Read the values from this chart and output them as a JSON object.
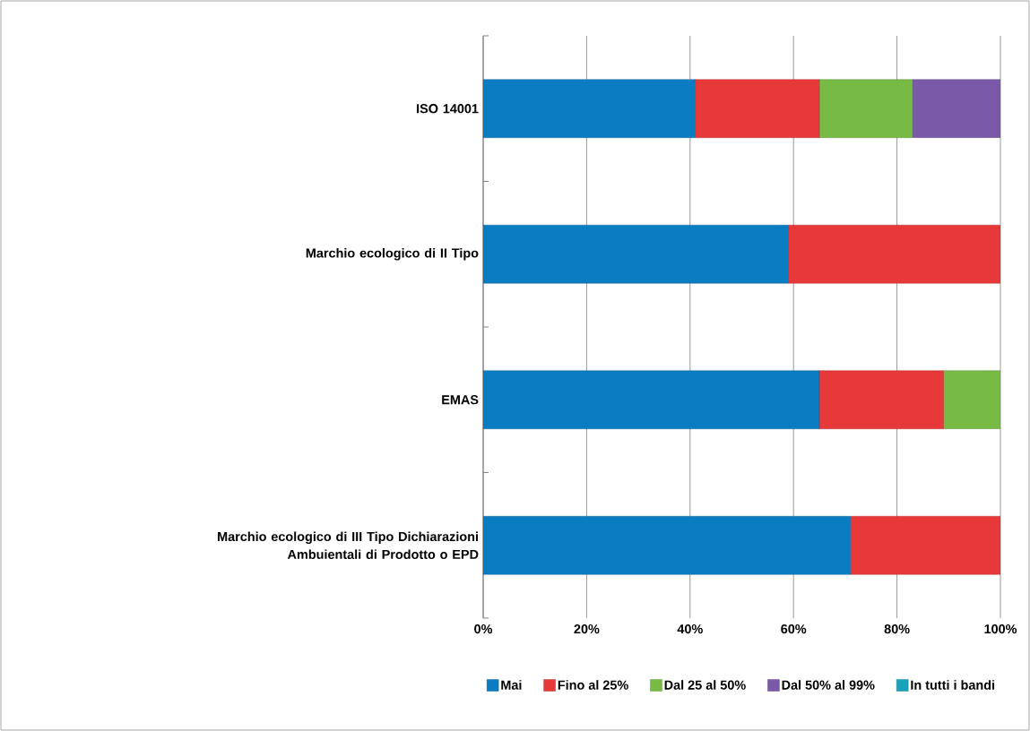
{
  "chart_data": {
    "type": "bar",
    "orientation": "horizontal",
    "stacked": true,
    "categories": [
      "ISO 14001",
      "Marchio ecologico di II Tipo",
      "EMAS",
      "Marchio ecologico di III Tipo Dichiarazioni Ambuientali di Prodotto o EPD"
    ],
    "series": [
      {
        "name": "Mai",
        "color": "#0a7cc2",
        "values": [
          41,
          59,
          65,
          71
        ]
      },
      {
        "name": "Fino al 25%",
        "color": "#e8393a",
        "values": [
          24,
          41,
          24,
          29
        ]
      },
      {
        "name": "Dal 25 al 50%",
        "color": "#77bb44",
        "values": [
          18,
          0,
          11,
          0
        ]
      },
      {
        "name": "Dal 50% al 99%",
        "color": "#7a5aa8",
        "values": [
          17,
          0,
          0,
          0
        ]
      },
      {
        "name": "In tutti i bandi",
        "color": "#1aa3b8",
        "values": [
          0,
          0,
          0,
          0
        ]
      }
    ],
    "xlim": [
      0,
      100
    ],
    "xticks": [
      {
        "value": 0,
        "label": "0%"
      },
      {
        "value": 20,
        "label": "20%"
      },
      {
        "value": 40,
        "label": "40%"
      },
      {
        "value": 60,
        "label": "60%"
      },
      {
        "value": 80,
        "label": "80%"
      },
      {
        "value": 100,
        "label": "100%"
      }
    ],
    "grid": "x",
    "legend": "bottom"
  }
}
